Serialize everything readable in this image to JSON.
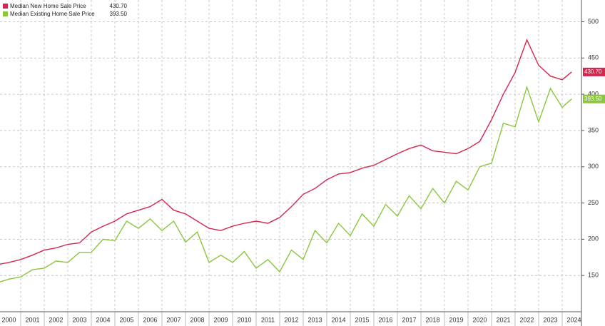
{
  "chart_data": {
    "type": "line",
    "x": [
      2000,
      2000.5,
      2001,
      2001.5,
      2002,
      2002.5,
      2003,
      2003.5,
      2004,
      2004.5,
      2005,
      2005.5,
      2006,
      2006.5,
      2007,
      2007.5,
      2008,
      2008.5,
      2009,
      2009.5,
      2010,
      2010.5,
      2011,
      2011.5,
      2012,
      2012.5,
      2013,
      2013.5,
      2014,
      2014.5,
      2015,
      2015.5,
      2016,
      2016.5,
      2017,
      2017.5,
      2018,
      2018.5,
      2019,
      2019.5,
      2020,
      2020.5,
      2021,
      2021.5,
      2022,
      2022.5,
      2023,
      2023.5,
      2024,
      2024.4
    ],
    "series": [
      {
        "name": "Median New Home Sale Price",
        "current": "430.70",
        "color": "#d4264f",
        "values": [
          165,
          168,
          172,
          178,
          185,
          188,
          193,
          195,
          210,
          218,
          225,
          235,
          240,
          245,
          255,
          240,
          235,
          225,
          215,
          212,
          218,
          222,
          225,
          222,
          230,
          245,
          262,
          270,
          282,
          290,
          292,
          298,
          302,
          310,
          318,
          325,
          330,
          322,
          320,
          318,
          325,
          335,
          365,
          400,
          430,
          475,
          440,
          425,
          420,
          430.7
        ]
      },
      {
        "name": "Median Existing Home Sale Price",
        "current": "393.50",
        "color": "#8cc63f",
        "values": [
          140,
          145,
          148,
          158,
          160,
          170,
          168,
          182,
          182,
          200,
          198,
          225,
          215,
          228,
          212,
          225,
          196,
          210,
          168,
          178,
          168,
          183,
          160,
          172,
          155,
          185,
          172,
          212,
          195,
          222,
          205,
          235,
          218,
          248,
          232,
          260,
          242,
          270,
          250,
          280,
          268,
          300,
          305,
          360,
          355,
          410,
          362,
          408,
          382,
          393.5
        ]
      }
    ],
    "xlim": [
      2000,
      2025
    ],
    "xticks": [
      2000,
      2001,
      2002,
      2003,
      2004,
      2005,
      2006,
      2007,
      2008,
      2009,
      2010,
      2011,
      2012,
      2013,
      2014,
      2015,
      2016,
      2017,
      2018,
      2019,
      2020,
      2021,
      2022,
      2023,
      2024
    ],
    "ylim": [
      100,
      530
    ],
    "yticks": [
      150,
      200,
      250,
      300,
      350,
      400,
      450,
      500
    ],
    "grid": true,
    "legend": "top-left"
  }
}
